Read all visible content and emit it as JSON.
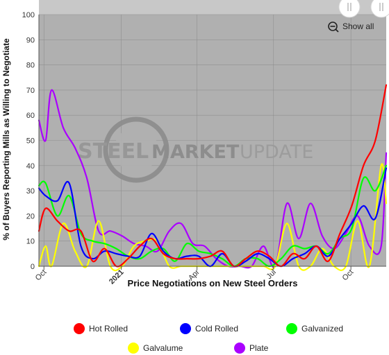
{
  "watermark": {
    "word1": "STEEL",
    "word2": "MARKET",
    "word3": "UPDATE"
  },
  "controls": {
    "show_all_label": "Show all",
    "zoom_icon": "zoom-out-icon",
    "handle_icon": "range-handle-icon"
  },
  "chart_data": {
    "type": "line",
    "xlabel": "Price Negotiations on New Steel Orders",
    "ylabel": "% of Buyers Reporting Mills as Willing to Negotiate",
    "ylim": [
      0,
      100
    ],
    "yticks": [
      0,
      10,
      20,
      30,
      40,
      50,
      60,
      70,
      80,
      90,
      100
    ],
    "xlim": [
      "2020-09-25",
      "2021-11-12"
    ],
    "xticks": [
      {
        "label": "Oct",
        "date": "2020-10-01",
        "bold": false
      },
      {
        "label": "2021",
        "date": "2021-01-01",
        "bold": true
      },
      {
        "label": "Apr",
        "date": "2021-04-01",
        "bold": false
      },
      {
        "label": "Jul",
        "date": "2021-07-01",
        "bold": false
      },
      {
        "label": "Oct",
        "date": "2021-10-01",
        "bold": false
      }
    ],
    "grid": true,
    "legend_position": "bottom",
    "series": [
      {
        "name": "Hot Rolled",
        "color": "#ff0000",
        "points": [
          [
            "2020-09-25",
            14
          ],
          [
            "2020-10-03",
            23
          ],
          [
            "2020-10-17",
            18
          ],
          [
            "2020-10-31",
            14
          ],
          [
            "2020-11-14",
            14
          ],
          [
            "2020-11-28",
            2
          ],
          [
            "2020-12-12",
            7
          ],
          [
            "2020-12-26",
            0
          ],
          [
            "2021-01-09",
            3
          ],
          [
            "2021-01-23",
            8
          ],
          [
            "2021-02-06",
            11
          ],
          [
            "2021-02-20",
            5
          ],
          [
            "2021-03-06",
            3
          ],
          [
            "2021-03-20",
            3
          ],
          [
            "2021-04-03",
            3
          ],
          [
            "2021-04-17",
            4
          ],
          [
            "2021-05-01",
            6
          ],
          [
            "2021-05-15",
            0
          ],
          [
            "2021-05-29",
            3
          ],
          [
            "2021-06-12",
            6
          ],
          [
            "2021-06-26",
            4
          ],
          [
            "2021-07-10",
            0
          ],
          [
            "2021-07-24",
            5
          ],
          [
            "2021-08-07",
            3
          ],
          [
            "2021-08-21",
            8
          ],
          [
            "2021-09-04",
            2
          ],
          [
            "2021-09-18",
            13
          ],
          [
            "2021-10-02",
            24
          ],
          [
            "2021-10-16",
            40
          ],
          [
            "2021-10-30",
            50
          ],
          [
            "2021-11-12",
            72
          ]
        ]
      },
      {
        "name": "Cold Rolled",
        "color": "#0000ff",
        "points": [
          [
            "2020-09-25",
            31
          ],
          [
            "2020-10-03",
            28
          ],
          [
            "2020-10-17",
            26
          ],
          [
            "2020-10-31",
            33
          ],
          [
            "2020-11-14",
            8
          ],
          [
            "2020-11-28",
            3
          ],
          [
            "2020-12-12",
            6
          ],
          [
            "2020-12-26",
            5
          ],
          [
            "2021-01-09",
            4
          ],
          [
            "2021-01-23",
            4
          ],
          [
            "2021-02-06",
            13
          ],
          [
            "2021-02-20",
            6
          ],
          [
            "2021-03-06",
            3
          ],
          [
            "2021-03-20",
            4
          ],
          [
            "2021-04-03",
            4
          ],
          [
            "2021-04-17",
            0
          ],
          [
            "2021-05-01",
            5
          ],
          [
            "2021-05-15",
            0
          ],
          [
            "2021-05-29",
            2
          ],
          [
            "2021-06-12",
            5
          ],
          [
            "2021-06-26",
            3
          ],
          [
            "2021-07-10",
            0
          ],
          [
            "2021-07-24",
            3
          ],
          [
            "2021-08-07",
            5
          ],
          [
            "2021-08-21",
            8
          ],
          [
            "2021-09-04",
            4
          ],
          [
            "2021-09-18",
            11
          ],
          [
            "2021-10-02",
            17
          ],
          [
            "2021-10-16",
            24
          ],
          [
            "2021-10-30",
            19
          ],
          [
            "2021-11-12",
            39
          ]
        ]
      },
      {
        "name": "Galvanized",
        "color": "#00ff00",
        "points": [
          [
            "2020-09-25",
            32
          ],
          [
            "2020-10-03",
            33
          ],
          [
            "2020-10-17",
            20
          ],
          [
            "2020-10-31",
            28
          ],
          [
            "2020-11-14",
            13
          ],
          [
            "2020-11-28",
            10
          ],
          [
            "2020-12-12",
            9
          ],
          [
            "2020-12-26",
            7
          ],
          [
            "2021-01-09",
            4
          ],
          [
            "2021-01-23",
            3
          ],
          [
            "2021-02-06",
            6
          ],
          [
            "2021-02-20",
            7
          ],
          [
            "2021-03-06",
            2
          ],
          [
            "2021-03-20",
            9
          ],
          [
            "2021-04-03",
            6
          ],
          [
            "2021-04-17",
            5
          ],
          [
            "2021-05-01",
            3
          ],
          [
            "2021-05-15",
            0
          ],
          [
            "2021-05-29",
            3
          ],
          [
            "2021-06-12",
            3
          ],
          [
            "2021-06-26",
            0
          ],
          [
            "2021-07-10",
            3
          ],
          [
            "2021-07-24",
            8
          ],
          [
            "2021-08-07",
            7
          ],
          [
            "2021-08-21",
            8
          ],
          [
            "2021-09-04",
            5
          ],
          [
            "2021-09-18",
            11
          ],
          [
            "2021-10-02",
            15
          ],
          [
            "2021-10-16",
            35
          ],
          [
            "2021-10-30",
            30
          ],
          [
            "2021-11-12",
            40
          ]
        ]
      },
      {
        "name": "Galvalume",
        "color": "#ffff00",
        "points": [
          [
            "2020-09-25",
            0
          ],
          [
            "2020-10-03",
            8
          ],
          [
            "2020-10-10",
            0
          ],
          [
            "2020-10-24",
            17
          ],
          [
            "2020-11-07",
            6
          ],
          [
            "2020-11-21",
            0
          ],
          [
            "2020-12-05",
            18
          ],
          [
            "2020-12-19",
            0
          ],
          [
            "2021-01-02",
            0
          ],
          [
            "2021-01-16",
            8
          ],
          [
            "2021-01-30",
            10
          ],
          [
            "2021-02-13",
            10
          ],
          [
            "2021-02-27",
            0
          ],
          [
            "2021-03-13",
            0
          ],
          [
            "2021-03-27",
            0
          ],
          [
            "2021-04-10",
            0
          ],
          [
            "2021-04-24",
            0
          ],
          [
            "2021-05-08",
            0
          ],
          [
            "2021-05-22",
            0
          ],
          [
            "2021-06-05",
            0
          ],
          [
            "2021-06-19",
            0
          ],
          [
            "2021-07-03",
            0
          ],
          [
            "2021-07-17",
            17
          ],
          [
            "2021-07-31",
            0
          ],
          [
            "2021-08-14",
            0
          ],
          [
            "2021-08-28",
            7
          ],
          [
            "2021-09-11",
            0
          ],
          [
            "2021-09-25",
            0
          ],
          [
            "2021-10-09",
            18
          ],
          [
            "2021-10-23",
            0
          ],
          [
            "2021-11-06",
            40
          ],
          [
            "2021-11-12",
            25
          ]
        ]
      },
      {
        "name": "Plate",
        "color": "#aa00ff",
        "points": [
          [
            "2020-09-25",
            58
          ],
          [
            "2020-10-03",
            50
          ],
          [
            "2020-10-10",
            70
          ],
          [
            "2020-10-24",
            55
          ],
          [
            "2020-11-07",
            47
          ],
          [
            "2020-11-21",
            35
          ],
          [
            "2020-12-05",
            14
          ],
          [
            "2020-12-19",
            14
          ],
          [
            "2021-01-02",
            12
          ],
          [
            "2021-01-16",
            9
          ],
          [
            "2021-01-30",
            8
          ],
          [
            "2021-02-13",
            6
          ],
          [
            "2021-02-27",
            14
          ],
          [
            "2021-03-13",
            17
          ],
          [
            "2021-03-27",
            9
          ],
          [
            "2021-04-10",
            8
          ],
          [
            "2021-04-24",
            3
          ],
          [
            "2021-05-08",
            0
          ],
          [
            "2021-05-22",
            0
          ],
          [
            "2021-06-05",
            0
          ],
          [
            "2021-06-19",
            8
          ],
          [
            "2021-07-03",
            0
          ],
          [
            "2021-07-17",
            25
          ],
          [
            "2021-07-31",
            11
          ],
          [
            "2021-08-14",
            25
          ],
          [
            "2021-08-28",
            12
          ],
          [
            "2021-09-11",
            7
          ],
          [
            "2021-09-25",
            13
          ],
          [
            "2021-10-09",
            20
          ],
          [
            "2021-10-23",
            8
          ],
          [
            "2021-11-06",
            8
          ],
          [
            "2021-11-12",
            45
          ]
        ]
      }
    ]
  }
}
